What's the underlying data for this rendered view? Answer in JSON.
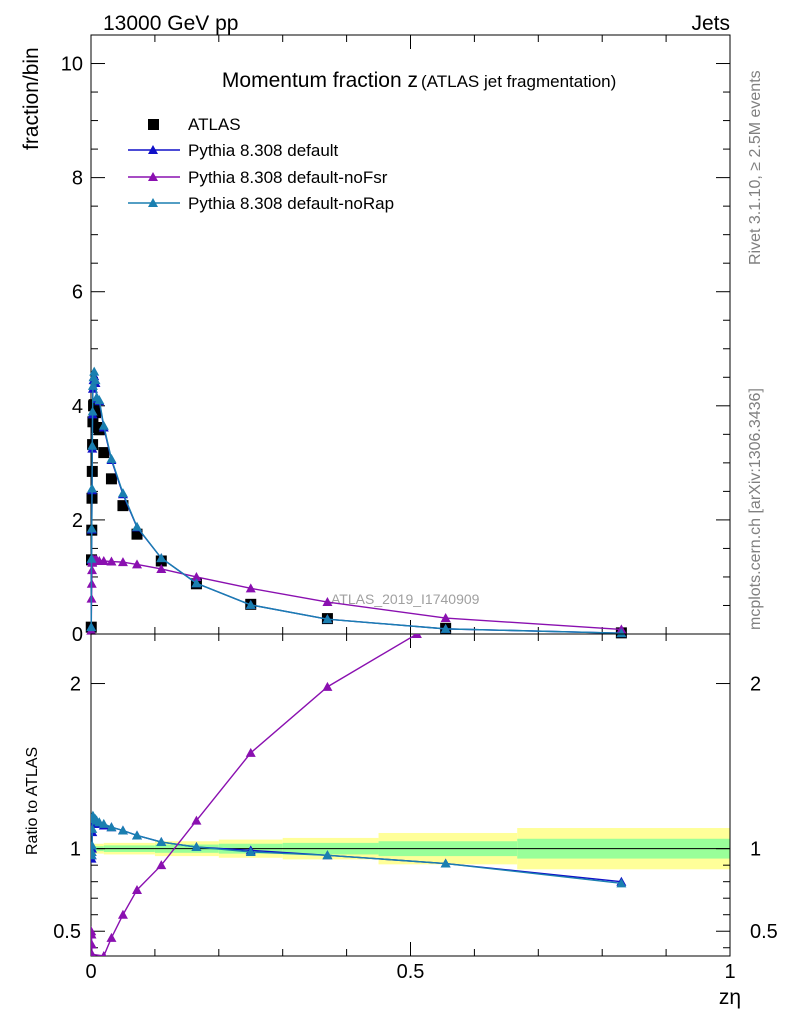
{
  "header": {
    "left": "13000 GeV pp",
    "right": "Jets"
  },
  "side_labels": {
    "top": "Rivet 3.1.10, ≥ 2.5M events",
    "bottom": "mcplots.cern.ch [arXiv:1306.3436]"
  },
  "analysis_label": "ATLAS_2019_I1740909",
  "colors": {
    "atlas": "#000000",
    "default": "#1010c8",
    "noFsr": "#8a10b0",
    "noRap": "#1a7fb0",
    "band_inner": "#99ff99",
    "band_outer": "#ffff99"
  },
  "chart_data": [
    {
      "type": "scatter",
      "title": "Momentum fraction z",
      "title_suffix": "(ATLAS jet fragmentation)",
      "ylabel": "fraction/bin",
      "xlim": [
        0,
        1
      ],
      "ylim": [
        0,
        10.5
      ],
      "yticks": [
        0,
        2,
        4,
        6,
        8,
        10
      ],
      "series": [
        {
          "name": "ATLAS",
          "marker": "square",
          "color": "#000000",
          "x": [
            0.0004,
            0.0008,
            0.0012,
            0.0016,
            0.002,
            0.0025,
            0.003,
            0.004,
            0.005,
            0.007,
            0.009,
            0.013,
            0.02,
            0.032,
            0.05,
            0.072,
            0.11,
            0.165,
            0.25,
            0.37,
            0.555,
            0.83
          ],
          "y": [
            0.12,
            1.3,
            1.82,
            2.38,
            2.85,
            3.32,
            3.72,
            4.0,
            4.02,
            3.88,
            3.62,
            3.58,
            3.18,
            2.72,
            2.25,
            1.75,
            1.28,
            0.88,
            0.52,
            0.27,
            0.1,
            0.02
          ]
        },
        {
          "name": "Pythia 8.308 default",
          "marker": "triangle",
          "color": "#1010c8",
          "x": [
            0.0004,
            0.0008,
            0.0012,
            0.0016,
            0.002,
            0.0025,
            0.003,
            0.004,
            0.005,
            0.007,
            0.009,
            0.013,
            0.02,
            0.032,
            0.05,
            0.072,
            0.11,
            0.165,
            0.25,
            0.37,
            0.555,
            0.83
          ],
          "y": [
            0.12,
            1.3,
            1.83,
            2.52,
            3.25,
            3.85,
            4.3,
            4.45,
            4.52,
            4.4,
            4.12,
            4.08,
            3.62,
            3.05,
            2.45,
            1.87,
            1.33,
            0.89,
            0.51,
            0.26,
            0.09,
            0.015
          ]
        },
        {
          "name": "Pythia 8.308 default-noFsr",
          "marker": "triangle",
          "color": "#8a10b0",
          "x": [
            0.0004,
            0.0008,
            0.0012,
            0.0016,
            0.002,
            0.0025,
            0.003,
            0.004,
            0.005,
            0.007,
            0.009,
            0.013,
            0.02,
            0.032,
            0.05,
            0.072,
            0.11,
            0.165,
            0.25,
            0.37,
            0.555,
            0.83
          ],
          "y": [
            0.06,
            0.62,
            0.88,
            1.12,
            1.25,
            1.28,
            1.3,
            1.3,
            1.3,
            1.3,
            1.3,
            1.28,
            1.28,
            1.27,
            1.26,
            1.22,
            1.14,
            1.0,
            0.8,
            0.56,
            0.28,
            0.08
          ]
        },
        {
          "name": "Pythia 8.308 default-noRap",
          "marker": "triangle",
          "color": "#1a7fb0",
          "x": [
            0.0004,
            0.0008,
            0.0012,
            0.0016,
            0.002,
            0.0025,
            0.003,
            0.004,
            0.005,
            0.007,
            0.009,
            0.013,
            0.02,
            0.032,
            0.05,
            0.072,
            0.11,
            0.165,
            0.25,
            0.37,
            0.555,
            0.83
          ],
          "y": [
            0.12,
            1.32,
            1.85,
            2.55,
            3.3,
            3.9,
            4.35,
            4.5,
            4.6,
            4.45,
            4.15,
            4.1,
            3.65,
            3.07,
            2.47,
            1.88,
            1.33,
            0.89,
            0.51,
            0.26,
            0.09,
            0.015
          ]
        }
      ]
    },
    {
      "type": "line",
      "ylabel": "Ratio to ATLAS",
      "xlabel": "zη",
      "xlim": [
        0,
        1
      ],
      "ylim": [
        0.35,
        2.3
      ],
      "yticks": [
        0.5,
        1,
        2
      ],
      "xticks": [
        0,
        0.5,
        1
      ],
      "bands": [
        {
          "x": [
            0.0,
            0.02,
            0.1,
            0.2,
            0.3,
            0.45,
            0.667,
            1.0
          ],
          "inner": [
            0.015,
            0.02,
            0.025,
            0.03,
            0.035,
            0.045,
            0.06
          ],
          "outer": [
            0.03,
            0.035,
            0.045,
            0.055,
            0.065,
            0.095,
            0.125
          ]
        }
      ],
      "series": [
        {
          "name": "Pythia 8.308 default",
          "color": "#1010c8",
          "x": [
            0.0008,
            0.0012,
            0.0016,
            0.002,
            0.0025,
            0.003,
            0.004,
            0.005,
            0.007,
            0.009,
            0.013,
            0.02,
            0.032,
            0.05,
            0.072,
            0.11,
            0.165,
            0.25,
            0.37,
            0.555,
            0.83
          ],
          "y": [
            0.94,
            0.96,
            1.0,
            1.1,
            1.16,
            1.18,
            1.17,
            1.16,
            1.16,
            1.15,
            1.15,
            1.14,
            1.13,
            1.11,
            1.08,
            1.04,
            1.01,
            0.99,
            0.96,
            0.91,
            0.8
          ]
        },
        {
          "name": "Pythia 8.308 default-noRap",
          "color": "#1a7fb0",
          "x": [
            0.0008,
            0.0012,
            0.0016,
            0.002,
            0.0025,
            0.003,
            0.004,
            0.005,
            0.007,
            0.009,
            0.013,
            0.02,
            0.032,
            0.05,
            0.072,
            0.11,
            0.165,
            0.25,
            0.37,
            0.555,
            0.83
          ],
          "y": [
            0.96,
            0.98,
            1.02,
            1.12,
            1.18,
            1.2,
            1.19,
            1.18,
            1.18,
            1.17,
            1.16,
            1.15,
            1.13,
            1.11,
            1.08,
            1.04,
            1.01,
            0.98,
            0.96,
            0.91,
            0.79
          ]
        },
        {
          "name": "Pythia 8.308 default-noFsr",
          "color": "#8a10b0",
          "x": [
            0.0004,
            0.0008,
            0.0012,
            0.0016,
            0.02,
            0.032,
            0.05,
            0.072,
            0.11,
            0.165,
            0.25,
            0.37,
            0.51
          ],
          "y": [
            0.5,
            0.48,
            0.42,
            0.36,
            0.35,
            0.46,
            0.6,
            0.75,
            0.9,
            1.17,
            1.58,
            1.98,
            2.3
          ]
        }
      ]
    }
  ]
}
